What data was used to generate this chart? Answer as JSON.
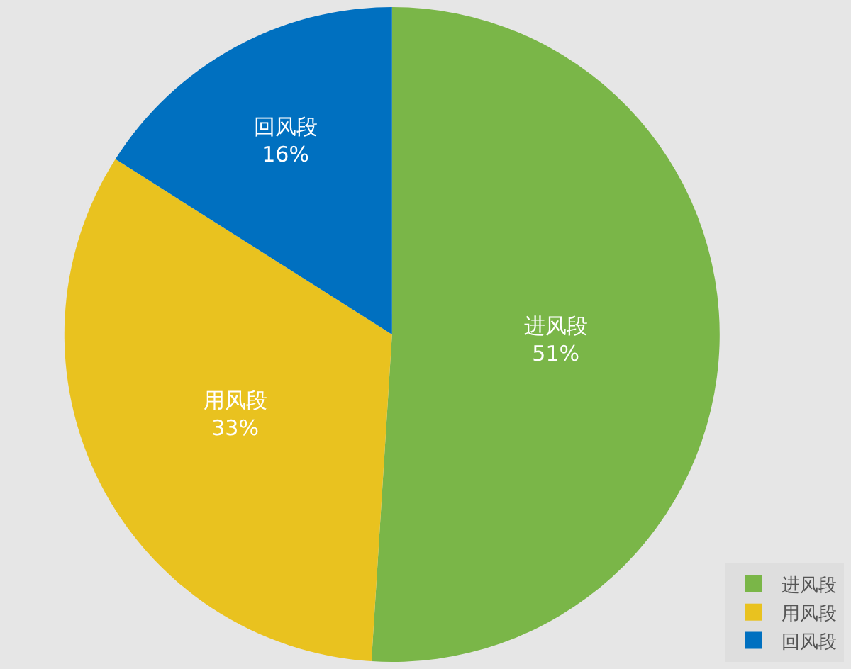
{
  "chart_data": {
    "type": "pie",
    "categories": [
      "进风段",
      "用风段",
      "回风段"
    ],
    "values": [
      51,
      33,
      16
    ],
    "value_labels": [
      "51%",
      "33%",
      "16%"
    ],
    "colors": [
      "#7ab648",
      "#e9c21f",
      "#0070c0"
    ],
    "legend": "bottom right"
  }
}
